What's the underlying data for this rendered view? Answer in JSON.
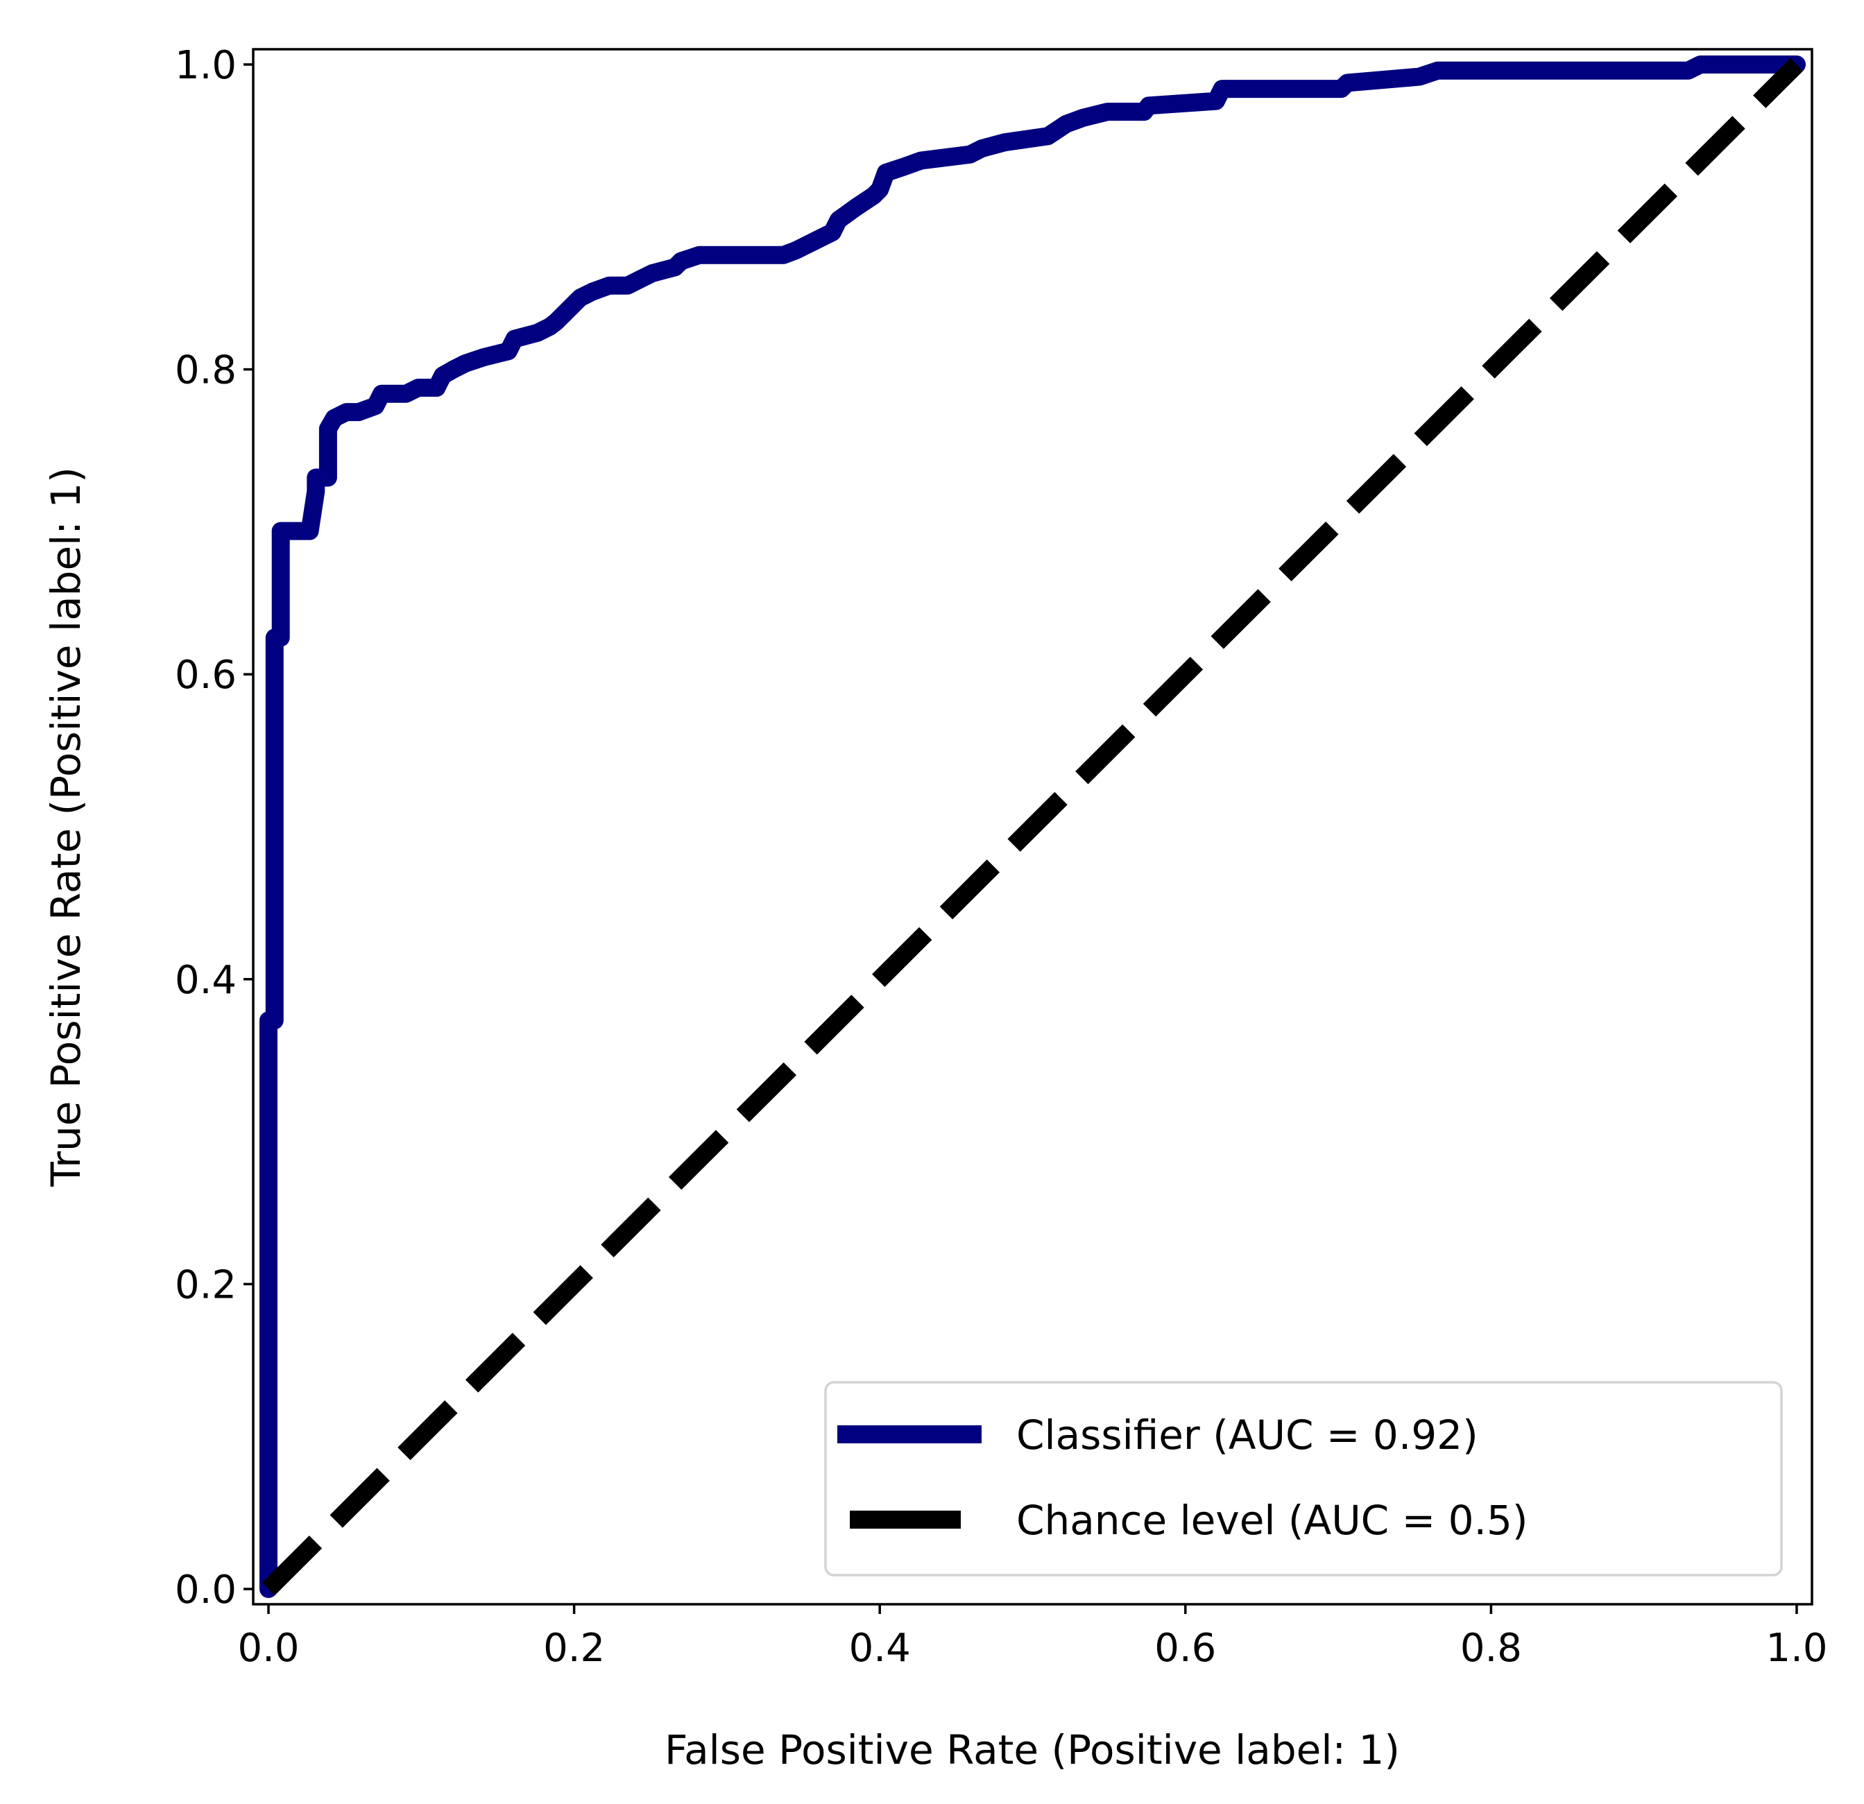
{
  "chart_data": {
    "type": "line",
    "title": "",
    "xlabel": "False Positive Rate (Positive label: 1)",
    "ylabel": "True Positive Rate (Positive label: 1)",
    "xlim": [
      -0.01,
      1.01
    ],
    "ylim": [
      -0.01,
      1.01
    ],
    "xticks": [
      "0.0",
      "0.2",
      "0.4",
      "0.6",
      "0.8",
      "1.0"
    ],
    "yticks": [
      "0.0",
      "0.2",
      "0.4",
      "0.6",
      "0.8",
      "1.0"
    ],
    "grid": false,
    "legend_position": "lower-right",
    "series": [
      {
        "name": "Classifier (AUC = 0.92)",
        "color": "#000080",
        "style": "solid",
        "x": [
          0.0,
          0.0,
          0.004,
          0.004,
          0.008,
          0.008,
          0.027,
          0.031,
          0.031,
          0.039,
          0.039,
          0.043,
          0.051,
          0.059,
          0.07,
          0.074,
          0.09,
          0.098,
          0.11,
          0.114,
          0.121,
          0.129,
          0.141,
          0.157,
          0.161,
          0.176,
          0.184,
          0.188,
          0.196,
          0.204,
          0.212,
          0.223,
          0.235,
          0.243,
          0.251,
          0.266,
          0.27,
          0.282,
          0.337,
          0.345,
          0.353,
          0.369,
          0.373,
          0.384,
          0.396,
          0.4,
          0.404,
          0.416,
          0.427,
          0.459,
          0.467,
          0.482,
          0.51,
          0.522,
          0.533,
          0.549,
          0.573,
          0.576,
          0.62,
          0.624,
          0.702,
          0.706,
          0.753,
          0.765,
          0.929,
          0.937,
          1.0
        ],
        "y": [
          0.0,
          0.373,
          0.373,
          0.624,
          0.624,
          0.694,
          0.694,
          0.72,
          0.729,
          0.729,
          0.761,
          0.768,
          0.772,
          0.772,
          0.776,
          0.784,
          0.784,
          0.788,
          0.788,
          0.796,
          0.8,
          0.804,
          0.808,
          0.812,
          0.82,
          0.824,
          0.828,
          0.831,
          0.839,
          0.847,
          0.851,
          0.855,
          0.855,
          0.859,
          0.863,
          0.867,
          0.871,
          0.875,
          0.875,
          0.878,
          0.882,
          0.89,
          0.898,
          0.906,
          0.914,
          0.918,
          0.929,
          0.933,
          0.937,
          0.941,
          0.945,
          0.949,
          0.953,
          0.961,
          0.965,
          0.969,
          0.969,
          0.973,
          0.976,
          0.984,
          0.984,
          0.988,
          0.992,
          0.996,
          0.996,
          1.0,
          1.0
        ]
      },
      {
        "name": "Chance level (AUC = 0.5)",
        "color": "#000000",
        "style": "dashed",
        "x": [
          0,
          1
        ],
        "y": [
          0,
          1
        ]
      }
    ]
  }
}
